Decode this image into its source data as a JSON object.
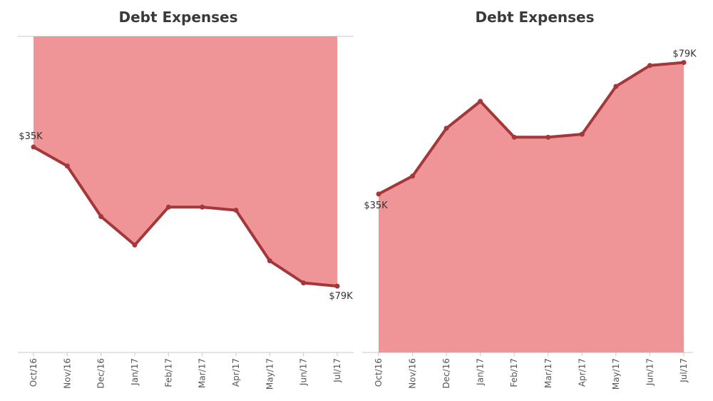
{
  "chart_data": [
    {
      "type": "area",
      "title": "Debt Expenses",
      "y_axis_reversed": true,
      "categories": [
        "Oct/16",
        "Nov/16",
        "Dec/16",
        "Jan/17",
        "Feb/17",
        "Mar/17",
        "Apr/17",
        "May/17",
        "Jun/17",
        "Jul/17"
      ],
      "values": [
        35,
        41,
        57,
        66,
        54,
        54,
        55,
        71,
        78,
        79
      ],
      "value_unit": "$K",
      "data_labels": {
        "first": "$35K",
        "last": "$79K"
      },
      "ylim": [
        0,
        100
      ],
      "colors": {
        "area": "#f09597",
        "line": "#a3373a"
      }
    },
    {
      "type": "area",
      "title": "Debt Expenses",
      "y_axis_reversed": false,
      "categories": [
        "Oct/16",
        "Nov/16",
        "Dec/16",
        "Jan/17",
        "Feb/17",
        "Mar/17",
        "Apr/17",
        "May/17",
        "Jun/17",
        "Jul/17"
      ],
      "values": [
        35,
        41,
        57,
        66,
        54,
        54,
        55,
        71,
        78,
        79
      ],
      "value_unit": "$K",
      "data_labels": {
        "first": "$35K",
        "last": "$79K"
      },
      "ylim": [
        -18,
        82
      ],
      "colors": {
        "area": "#f09597",
        "line": "#a3373a"
      }
    }
  ]
}
